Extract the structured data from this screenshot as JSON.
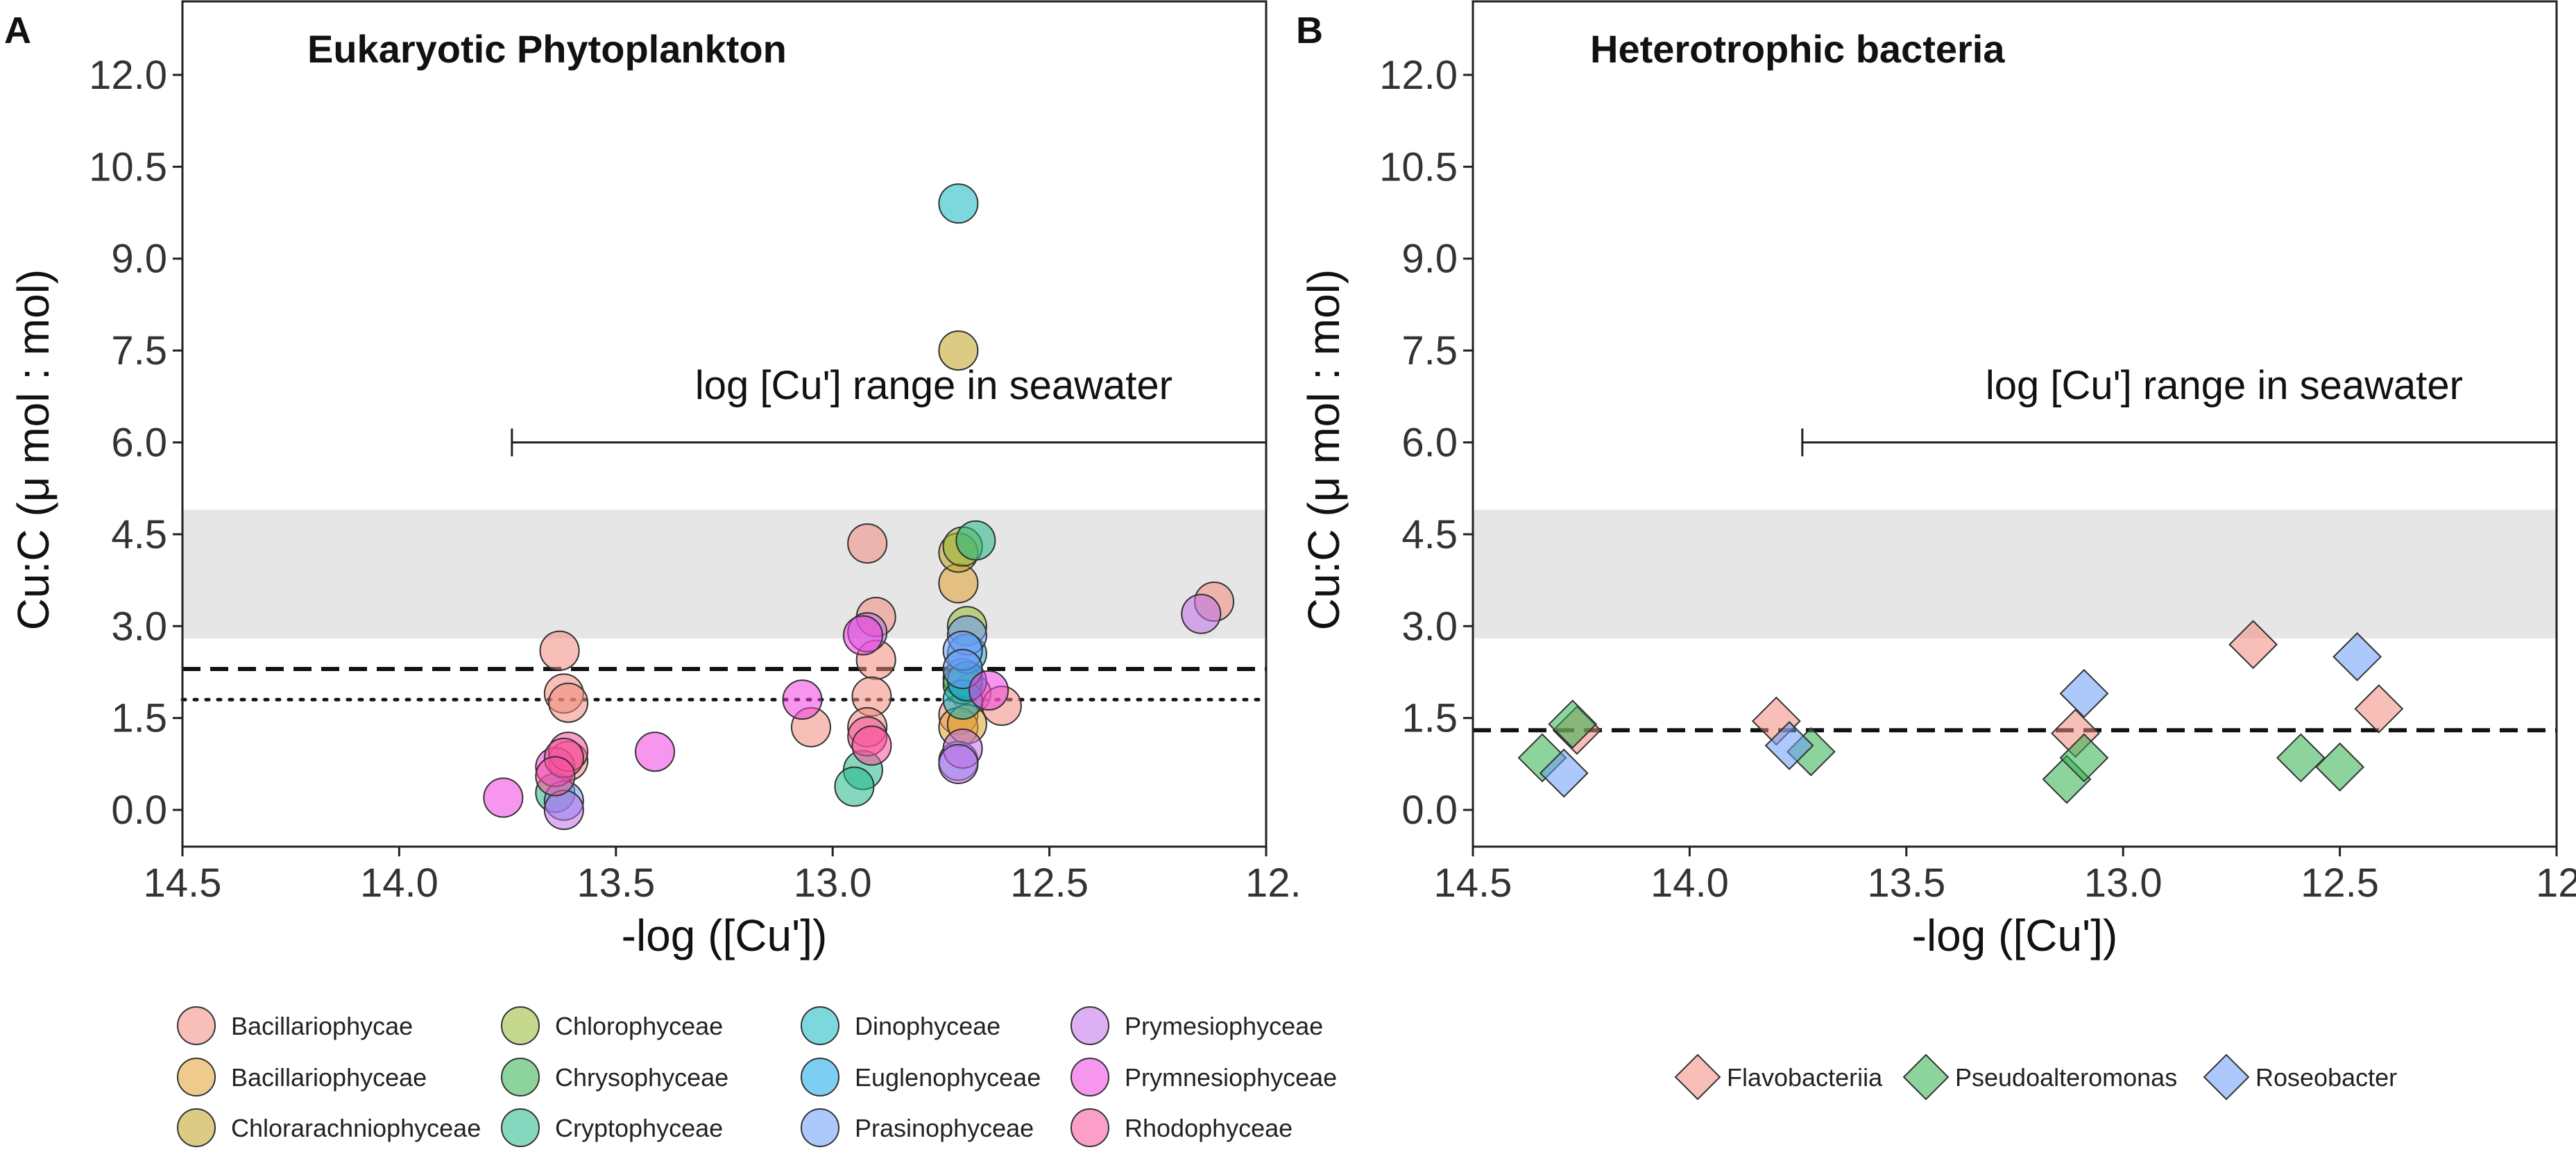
{
  "colors": {
    "Bacillariophycae": "#f08a7e",
    "Bacillariophyceae": "#e0a030",
    "Chlorarachniophyceae": "#bda020",
    "Chlorophyceae": "#96b830",
    "Chrysophyceae": "#2db04a",
    "Cryptophyceae": "#20b888",
    "Dinophyceae": "#10b8c0",
    "Euglenophyceae": "#10a8e8",
    "Prasinophyceae": "#6a9af8",
    "Prymesiophyceae": "#c070e8",
    "Prymnesiophyceae": "#f040e0",
    "Rhodophyceae": "#f8509a",
    "Flavobacteriia": "#f08a7e",
    "Pseudoalteromonas": "#2db04a",
    "Roseobacter": "#6a9af8"
  },
  "chart_data": [
    {
      "type": "scatter",
      "panel": "A",
      "title": "Eukaryotic Phytoplankton",
      "xlabel": "-log ([Cu'])",
      "ylabel": "Cu:C (μ mol : mol)",
      "xlim": [
        14.5,
        12.0
      ],
      "ylim": [
        -0.6,
        13.2
      ],
      "x_ticks": [
        "14.5",
        "14.0",
        "13.5",
        "13.0",
        "12.5",
        "12."
      ],
      "y_ticks": [
        "0.0",
        "1.5",
        "3.0",
        "4.5",
        "6.0",
        "7.5",
        "9.0",
        "10.5",
        "12.0"
      ],
      "shaded_band": [
        2.8,
        4.9
      ],
      "dashed_line": 2.3,
      "dotted_line": 1.8,
      "range_bar": {
        "label": "log [Cu'] range in seawater",
        "x_start": 13.74,
        "x_end": 12.0,
        "y": 6.0
      },
      "legend": [
        "Bacillariophycae",
        "Chlorophyceae",
        "Dinophyceae",
        "Prymesiophyceae",
        "Bacillariophyceae",
        "Chrysophyceae",
        "Euglenophyceae",
        "Prymnesiophyceae",
        "Chlorarachniophyceae",
        "Cryptophyceae",
        "Prasinophyceae",
        "Rhodophyceae"
      ],
      "series": [
        {
          "name": "Bacillariophycae",
          "points": [
            [
              13.63,
              2.6
            ],
            [
              13.62,
              1.9
            ],
            [
              13.61,
              1.75
            ],
            [
              13.61,
              0.8
            ],
            [
              12.92,
              4.35
            ],
            [
              12.9,
              3.15
            ],
            [
              12.9,
              2.45
            ],
            [
              13.05,
              1.35
            ],
            [
              12.91,
              1.85
            ],
            [
              12.92,
              1.35
            ],
            [
              12.68,
              1.9
            ],
            [
              12.61,
              1.7
            ],
            [
              12.12,
              3.4
            ],
            [
              12.71,
              1.55
            ]
          ]
        },
        {
          "name": "Bacillariophyceae",
          "points": [
            [
              12.71,
              3.7
            ],
            [
              12.71,
              1.35
            ],
            [
              12.69,
              1.4
            ]
          ]
        },
        {
          "name": "Chlorarachniophyceae",
          "points": [
            [
              12.71,
              7.5
            ],
            [
              12.71,
              4.2
            ]
          ]
        },
        {
          "name": "Chlorophyceae",
          "points": [
            [
              12.7,
              4.3
            ],
            [
              12.69,
              3.0
            ],
            [
              12.7,
              2.15
            ]
          ]
        },
        {
          "name": "Chrysophyceae",
          "points": [
            [
              12.7,
              2.05
            ]
          ]
        },
        {
          "name": "Cryptophyceae",
          "points": [
            [
              12.67,
              4.4
            ],
            [
              12.93,
              0.65
            ],
            [
              12.95,
              0.38
            ],
            [
              13.64,
              0.28
            ]
          ]
        },
        {
          "name": "Dinophyceae",
          "points": [
            [
              12.71,
              9.9
            ],
            [
              12.7,
              1.8
            ]
          ]
        },
        {
          "name": "Euglenophyceae",
          "points": [
            [
              12.69,
              2.55
            ],
            [
              12.69,
              2.1
            ]
          ]
        },
        {
          "name": "Prasinophyceae",
          "points": [
            [
              12.69,
              2.85
            ],
            [
              12.7,
              2.6
            ],
            [
              12.7,
              2.3
            ],
            [
              12.71,
              0.8
            ],
            [
              13.62,
              0.15
            ]
          ]
        },
        {
          "name": "Prymesiophyceae",
          "points": [
            [
              12.92,
              2.9
            ],
            [
              12.7,
              1.0
            ],
            [
              12.71,
              0.75
            ],
            [
              13.62,
              0.0
            ],
            [
              12.15,
              3.2
            ]
          ]
        },
        {
          "name": "Prymnesiophyceae",
          "points": [
            [
              13.76,
              0.2
            ],
            [
              13.41,
              0.95
            ],
            [
              13.07,
              1.8
            ],
            [
              12.64,
              1.95
            ],
            [
              12.93,
              2.85
            ],
            [
              13.64,
              0.7
            ]
          ]
        },
        {
          "name": "Rhodophyceae",
          "points": [
            [
              12.92,
              1.2
            ],
            [
              12.91,
              1.05
            ],
            [
              13.61,
              0.95
            ],
            [
              13.62,
              0.85
            ],
            [
              13.64,
              0.55
            ]
          ]
        }
      ]
    },
    {
      "type": "scatter",
      "panel": "B",
      "title": "Heterotrophic bacteria",
      "xlabel": "-log ([Cu'])",
      "ylabel": "Cu:C (μ mol : mol)",
      "xlim": [
        14.5,
        12.0
      ],
      "ylim": [
        -0.6,
        13.2
      ],
      "x_ticks": [
        "14.5",
        "14.0",
        "13.5",
        "13.0",
        "12.5",
        "12."
      ],
      "y_ticks": [
        "0.0",
        "1.5",
        "3.0",
        "4.5",
        "6.0",
        "7.5",
        "9.0",
        "10.5",
        "12.0"
      ],
      "shaded_band": [
        2.8,
        4.9
      ],
      "dashed_line": 1.3,
      "range_bar": {
        "label": "log [Cu'] range in seawater",
        "x_start": 13.74,
        "x_end": 12.0,
        "y": 6.0
      },
      "legend": [
        "Flavobacteriia",
        "Pseudoalteromonas",
        "Roseobacter"
      ],
      "series": [
        {
          "name": "Flavobacteriia",
          "points": [
            [
              14.26,
              1.3
            ],
            [
              13.8,
              1.45
            ],
            [
              13.11,
              1.25
            ],
            [
              12.7,
              2.7
            ],
            [
              12.41,
              1.65
            ]
          ]
        },
        {
          "name": "Pseudoalteromonas",
          "points": [
            [
              14.34,
              0.85
            ],
            [
              14.27,
              1.4
            ],
            [
              13.72,
              0.95
            ],
            [
              13.13,
              0.5
            ],
            [
              13.09,
              0.85
            ],
            [
              12.59,
              0.85
            ],
            [
              12.5,
              0.7
            ]
          ]
        },
        {
          "name": "Roseobacter",
          "points": [
            [
              14.29,
              0.6
            ],
            [
              13.77,
              1.05
            ],
            [
              13.09,
              1.9
            ],
            [
              12.46,
              2.5
            ]
          ]
        }
      ]
    }
  ],
  "panel_letters": [
    "A",
    "B"
  ]
}
